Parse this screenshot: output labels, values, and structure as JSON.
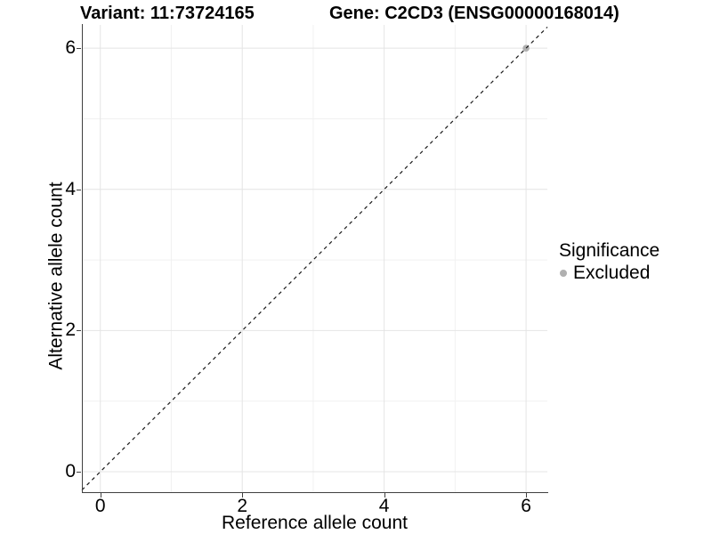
{
  "titles": {
    "left": "Variant: 11:73724165",
    "right": "Gene: C2CD3 (ENSG00000168014)"
  },
  "axes": {
    "x_label": "Reference allele count",
    "y_label": "Alternative allele count"
  },
  "legend": {
    "title": "Significance",
    "items": [
      {
        "label": "Excluded",
        "color": "#b0b0b0",
        "marker": "circle-icon"
      }
    ]
  },
  "colors": {
    "background": "#ffffff",
    "axis_line": "#404040",
    "grid_major": "#e4e4e4",
    "grid_minor": "#f1f1f1",
    "point_excluded": "#b0b0b0",
    "reference_line": "#1a1a1a",
    "text": "#000000"
  },
  "chart_data": {
    "type": "scatter",
    "title": "Variant: 11:73724165    Gene: C2CD3 (ENSG00000168014)",
    "xlabel": "Reference allele count",
    "ylabel": "Alternative allele count",
    "x_ticks": [
      0,
      2,
      4,
      6
    ],
    "y_ticks": [
      0,
      2,
      4,
      6
    ],
    "x_minor": [
      1,
      3,
      5
    ],
    "y_minor": [
      1,
      3,
      5
    ],
    "xlim": [
      -0.26,
      6.3
    ],
    "ylim": [
      -0.29,
      6.33
    ],
    "grid": true,
    "legend_position": "right",
    "series": [
      {
        "name": "Excluded",
        "color": "#b0b0b0",
        "points": [
          {
            "x": 6,
            "y": 6
          }
        ]
      }
    ],
    "reference_line": {
      "type": "identity",
      "slope": 1,
      "intercept": 0,
      "style": "dashed",
      "color": "#1a1a1a"
    }
  }
}
